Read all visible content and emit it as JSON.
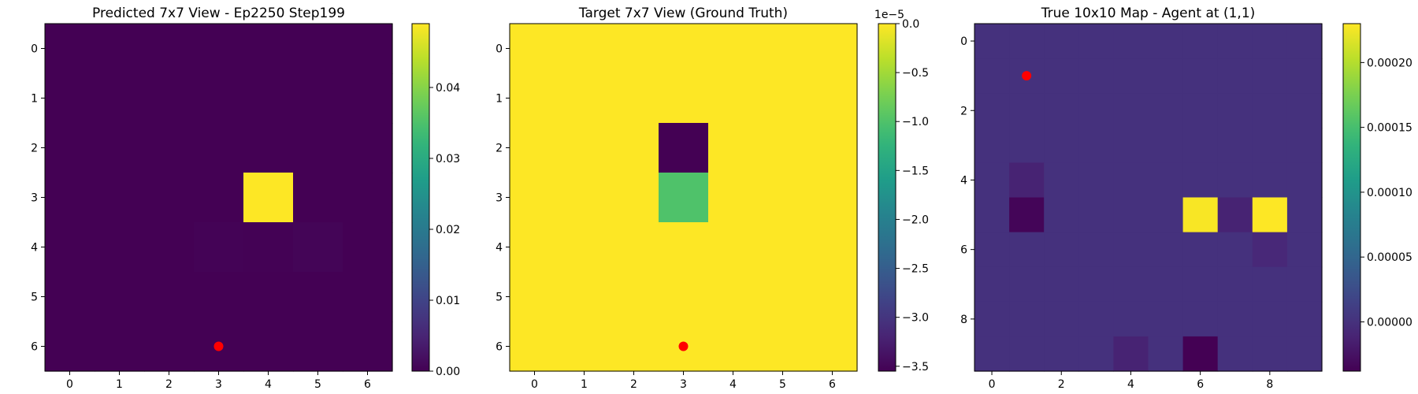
{
  "chart_data": [
    {
      "type": "heatmap",
      "title": "Predicted 7x7 View - Ep2250 Step199",
      "rows": 7,
      "cols": 7,
      "x_ticks": [
        0,
        1,
        2,
        3,
        4,
        5,
        6
      ],
      "y_ticks": [
        0,
        1,
        2,
        3,
        4,
        5,
        6
      ],
      "vmin": 0.0,
      "vmax": 0.049,
      "values": [
        [
          0.0,
          0.0,
          0.0,
          0.0,
          0.0,
          0.0,
          0.0
        ],
        [
          0.0,
          0.0,
          0.0,
          0.0,
          0.0,
          0.0,
          0.0
        ],
        [
          0.0,
          0.0,
          0.0,
          0.0,
          0.0,
          0.0,
          0.0
        ],
        [
          0.0,
          0.0,
          0.0,
          0.0,
          0.049,
          0.0,
          0.0
        ],
        [
          0.0,
          0.0,
          0.0,
          0.0003,
          0.0002,
          0.0005,
          0.0
        ],
        [
          0.0,
          0.0,
          0.0,
          0.0,
          0.0,
          0.0,
          0.0
        ],
        [
          0.0,
          0.0,
          0.0,
          0.0,
          0.0,
          0.0,
          0.0
        ]
      ],
      "marker": {
        "x": 3,
        "y": 6,
        "color": "#ff0000"
      },
      "colorbar": {
        "ticks": [
          0.0,
          0.01,
          0.02,
          0.03,
          0.04
        ],
        "labels": [
          "0.00",
          "0.01",
          "0.02",
          "0.03",
          "0.04"
        ],
        "offset_text": ""
      }
    },
    {
      "type": "heatmap",
      "title": "Target 7x7 View (Ground Truth)",
      "rows": 7,
      "cols": 7,
      "x_ticks": [
        0,
        1,
        2,
        3,
        4,
        5,
        6
      ],
      "y_ticks": [
        0,
        1,
        2,
        3,
        4,
        5,
        6
      ],
      "vmin": -3.55e-05,
      "vmax": 0.0,
      "values": [
        [
          0,
          0,
          0,
          0,
          0,
          0,
          0
        ],
        [
          0,
          0,
          0,
          0,
          0,
          0,
          0
        ],
        [
          0,
          0,
          0,
          -3.55e-05,
          0,
          0,
          0
        ],
        [
          0,
          0,
          0,
          -1e-05,
          0,
          0,
          0
        ],
        [
          0,
          0,
          0,
          0,
          0,
          0,
          0
        ],
        [
          0,
          0,
          0,
          0,
          0,
          0,
          0
        ],
        [
          0,
          0,
          0,
          0,
          0,
          0,
          0
        ]
      ],
      "marker": {
        "x": 3,
        "y": 6,
        "color": "#ff0000"
      },
      "colorbar": {
        "ticks": [
          0.0,
          -5e-06,
          -1e-05,
          -1.5e-05,
          -2e-05,
          -2.5e-05,
          -3e-05,
          -3.5e-05
        ],
        "labels": [
          "0.0",
          "−0.5",
          "−1.0",
          "−1.5",
          "−2.0",
          "−2.5",
          "−3.0",
          "−3.5"
        ],
        "offset_text": "1e−5"
      }
    },
    {
      "type": "heatmap",
      "title": "True 10x10 Map - Agent at (1,1)",
      "rows": 10,
      "cols": 10,
      "x_ticks": [
        0,
        2,
        4,
        6,
        8
      ],
      "y_ticks": [
        0,
        2,
        4,
        6,
        8
      ],
      "vmin": -3.8e-05,
      "vmax": 0.00023,
      "values": [
        [
          0,
          0,
          0,
          0,
          0,
          0,
          0,
          0,
          0,
          0
        ],
        [
          0,
          0,
          0,
          0,
          0,
          0,
          0,
          0,
          0,
          0
        ],
        [
          0,
          0,
          0,
          0,
          0,
          0,
          0,
          0,
          0,
          0
        ],
        [
          0,
          0,
          0,
          0,
          0,
          0,
          0,
          0,
          0,
          0
        ],
        [
          0,
          -1.2e-05,
          0,
          0,
          0,
          0,
          0,
          0,
          0,
          0
        ],
        [
          0,
          -3.5e-05,
          0,
          0,
          0,
          0,
          0.000228,
          -1.2e-05,
          0.00023,
          0
        ],
        [
          0,
          0,
          0,
          0,
          0,
          0,
          0,
          0,
          -8e-06,
          0
        ],
        [
          0,
          0,
          0,
          0,
          0,
          0,
          0,
          0,
          0,
          0
        ],
        [
          0,
          0,
          0,
          0,
          0,
          0,
          0,
          0,
          0,
          0
        ],
        [
          0,
          0,
          0,
          0,
          -1.2e-05,
          0,
          -3.8e-05,
          0,
          0,
          0
        ]
      ],
      "marker": {
        "x": 1,
        "y": 1,
        "color": "#ff0000"
      },
      "colorbar": {
        "ticks": [
          0.0,
          5e-05,
          0.0001,
          0.00015,
          0.0002
        ],
        "labels": [
          "0.00000",
          "0.00005",
          "0.00010",
          "0.00015",
          "0.00020"
        ],
        "offset_text": ""
      }
    }
  ]
}
